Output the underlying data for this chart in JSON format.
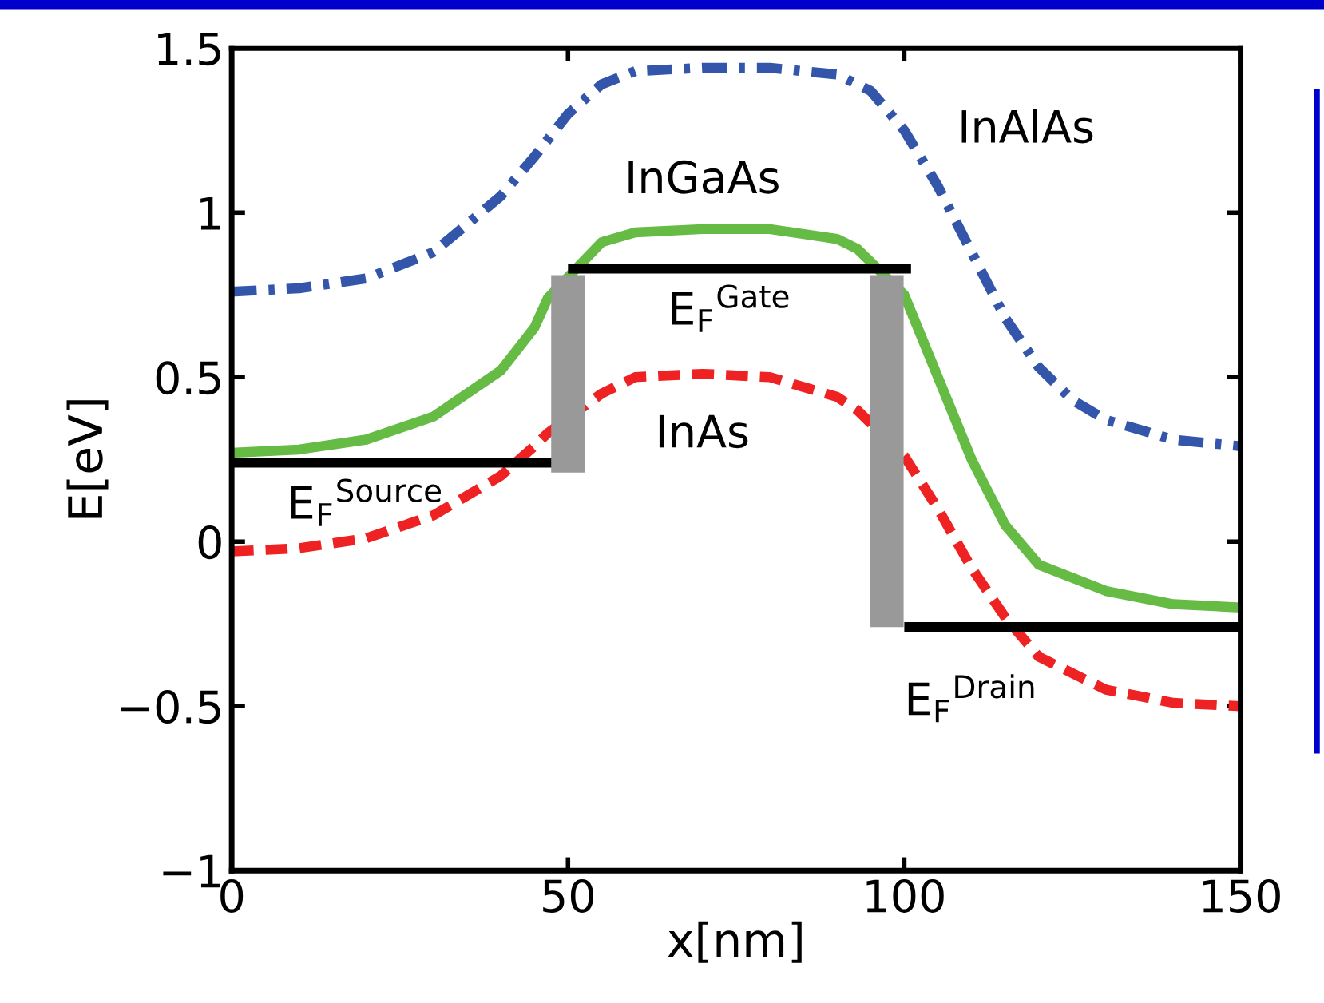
{
  "chart_data": {
    "type": "line",
    "xlabel": "x[nm]",
    "ylabel": "E[eV]",
    "xlim": [
      0,
      150
    ],
    "xticks": [
      0,
      50,
      100,
      150
    ],
    "ylim": [
      -1,
      1.5
    ],
    "yticks": [
      {
        "value": -1,
        "label": "−1"
      },
      {
        "value": -0.5,
        "label": "−0.5"
      },
      0,
      0.5,
      1,
      1.5
    ],
    "grid": false,
    "legend": false,
    "series": [
      {
        "name": "InAlAs",
        "line_style": "dashdot",
        "color": "#3355aa",
        "x": [
          0,
          10,
          20,
          30,
          40,
          45,
          50,
          55,
          60,
          70,
          80,
          90,
          95,
          100,
          105,
          110,
          115,
          120,
          125,
          130,
          140,
          150
        ],
        "values": [
          0.76,
          0.77,
          0.8,
          0.88,
          1.05,
          1.17,
          1.3,
          1.39,
          1.43,
          1.44,
          1.44,
          1.42,
          1.37,
          1.25,
          1.08,
          0.88,
          0.68,
          0.53,
          0.43,
          0.37,
          0.31,
          0.29
        ]
      },
      {
        "name": "InGaAs",
        "line_style": "solid",
        "color": "#66bb44",
        "x": [
          0,
          10,
          20,
          30,
          40,
          45,
          47,
          55,
          60,
          70,
          80,
          90,
          93,
          100,
          105,
          110,
          115,
          120,
          130,
          140,
          150
        ],
        "values": [
          0.27,
          0.28,
          0.31,
          0.38,
          0.52,
          0.65,
          0.74,
          0.91,
          0.94,
          0.95,
          0.95,
          0.92,
          0.89,
          0.75,
          0.5,
          0.25,
          0.05,
          -0.07,
          -0.15,
          -0.19,
          -0.2
        ]
      },
      {
        "name": "InAs",
        "line_style": "dashed",
        "color": "#ee2222",
        "x": [
          0,
          10,
          20,
          30,
          40,
          45,
          47,
          55,
          60,
          70,
          80,
          90,
          93,
          100,
          105,
          110,
          115,
          120,
          130,
          140,
          150
        ],
        "values": [
          -0.03,
          -0.02,
          0.01,
          0.08,
          0.2,
          0.29,
          0.33,
          0.45,
          0.5,
          0.51,
          0.5,
          0.44,
          0.4,
          0.26,
          0.1,
          -0.08,
          -0.23,
          -0.35,
          -0.45,
          -0.49,
          -0.5
        ]
      },
      {
        "name": "E$_{F}$$^{Source}$",
        "line_style": "solid",
        "color": "#000000",
        "x": [
          0,
          48.4
        ],
        "values": [
          0.24,
          0.24
        ]
      },
      {
        "name": "E$_{F}$$^{Gate}$",
        "line_style": "solid",
        "color": "#000000",
        "x": [
          50,
          101
        ],
        "values": [
          0.83,
          0.83
        ]
      },
      {
        "name": "E$_{F}$$^{Drain}$",
        "line_style": "solid",
        "color": "#000000",
        "x": [
          100,
          150
        ],
        "values": [
          -0.26,
          -0.26
        ]
      },
      {
        "type": "bar",
        "color": "#999999",
        "x": [
          50,
          97.4
        ],
        "base": [
          0.21,
          -0.26
        ],
        "values": [
          0.6,
          1.07
        ]
      }
    ]
  }
}
